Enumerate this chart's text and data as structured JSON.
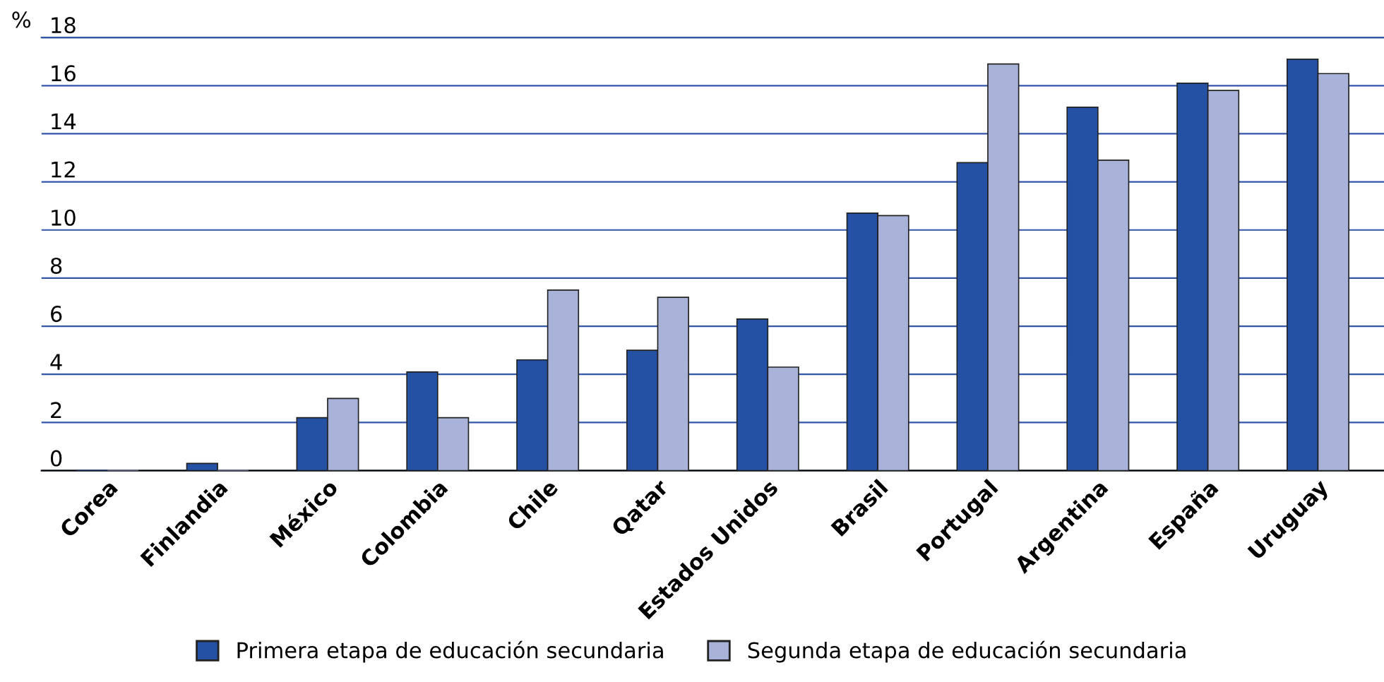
{
  "chart_data": {
    "type": "bar",
    "ylabel": "%",
    "categories": [
      "Corea",
      "Finlandia",
      "México",
      "Colombia",
      "Chile",
      "Qatar",
      "Estados Unidos",
      "Brasil",
      "Portugal",
      "Argentina",
      "España",
      "Uruguay"
    ],
    "series": [
      {
        "name": "Primera etapa de educación secundaria",
        "color": "#2451a4",
        "values": [
          0,
          0.3,
          2.2,
          4.1,
          4.6,
          5.0,
          6.3,
          10.7,
          12.8,
          15.1,
          16.1,
          17.1
        ]
      },
      {
        "name": "Segunda etapa de educación secundaria",
        "color": "#a9b3d9",
        "values": [
          0,
          0,
          3.0,
          2.2,
          7.5,
          7.2,
          4.3,
          10.6,
          16.9,
          12.9,
          15.8,
          16.5
        ]
      }
    ],
    "ylim": [
      0,
      18
    ],
    "yticks": [
      0,
      2,
      4,
      6,
      8,
      10,
      12,
      14,
      16,
      18
    ],
    "grid": "y",
    "legend": "bottom"
  }
}
